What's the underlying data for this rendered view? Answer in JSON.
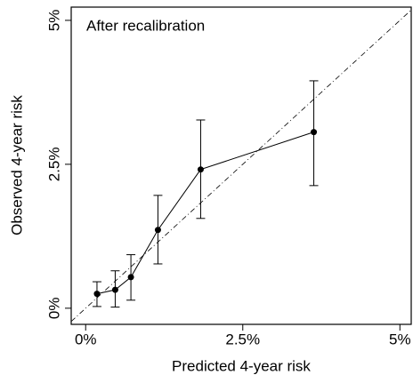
{
  "chart_data": {
    "type": "calibration",
    "annotation": "After recalibration",
    "x_label": "Predicted 4-year risk",
    "y_label": "Observed 4-year risk",
    "x": [
      0.18,
      0.47,
      0.72,
      1.15,
      1.83,
      3.63
    ],
    "series": [
      {
        "color": "#000000",
        "values": [
          0.25,
          0.32,
          0.54,
          1.36,
          2.41,
          3.06
        ],
        "lower": [
          0.03,
          0.02,
          0.14,
          0.77,
          1.56,
          2.13
        ],
        "upper": [
          0.46,
          0.65,
          0.93,
          1.96,
          3.27,
          3.95
        ]
      }
    ],
    "xlim": [
      -0.23,
      5.18
    ],
    "ylim": [
      -0.28,
      5.23
    ],
    "xticks": [
      {
        "value": 0,
        "label": "0%"
      },
      {
        "value": 2.5,
        "label": "2.5%"
      },
      {
        "value": 5,
        "label": "5%"
      }
    ],
    "yticks": [
      {
        "value": 0,
        "label": "0%"
      },
      {
        "value": 2.5,
        "label": "2.5%"
      },
      {
        "value": 5,
        "label": "5%"
      }
    ],
    "reference_line": true
  }
}
